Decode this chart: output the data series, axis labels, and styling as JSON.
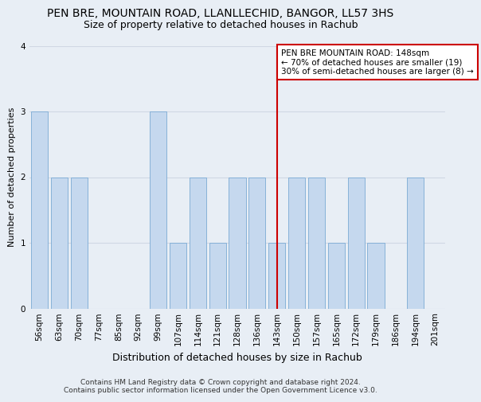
{
  "title": "PEN BRE, MOUNTAIN ROAD, LLANLLECHID, BANGOR, LL57 3HS",
  "subtitle": "Size of property relative to detached houses in Rachub",
  "xlabel": "Distribution of detached houses by size in Rachub",
  "ylabel": "Number of detached properties",
  "categories": [
    "56sqm",
    "63sqm",
    "70sqm",
    "77sqm",
    "85sqm",
    "92sqm",
    "99sqm",
    "107sqm",
    "114sqm",
    "121sqm",
    "128sqm",
    "136sqm",
    "143sqm",
    "150sqm",
    "157sqm",
    "165sqm",
    "172sqm",
    "179sqm",
    "186sqm",
    "194sqm",
    "201sqm"
  ],
  "values": [
    3,
    2,
    2,
    0,
    0,
    0,
    3,
    1,
    2,
    1,
    2,
    2,
    1,
    2,
    2,
    1,
    2,
    1,
    0,
    2,
    0
  ],
  "bar_color": "#c5d8ee",
  "bar_edge_color": "#7aaad4",
  "highlight_index": 12,
  "vline_color": "#cc0000",
  "annotation_text": "PEN BRE MOUNTAIN ROAD: 148sqm\n← 70% of detached houses are smaller (19)\n30% of semi-detached houses are larger (8) →",
  "annotation_box_color": "white",
  "annotation_box_edge": "#cc0000",
  "ylim": [
    0,
    4
  ],
  "yticks": [
    0,
    1,
    2,
    3,
    4
  ],
  "grid_color": "#d0d8e4",
  "bg_color": "#e8eef5",
  "footer": "Contains HM Land Registry data © Crown copyright and database right 2024.\nContains public sector information licensed under the Open Government Licence v3.0.",
  "title_fontsize": 10,
  "subtitle_fontsize": 9,
  "xlabel_fontsize": 9,
  "ylabel_fontsize": 8,
  "tick_fontsize": 7.5,
  "annotation_fontsize": 7.5,
  "footer_fontsize": 6.5
}
